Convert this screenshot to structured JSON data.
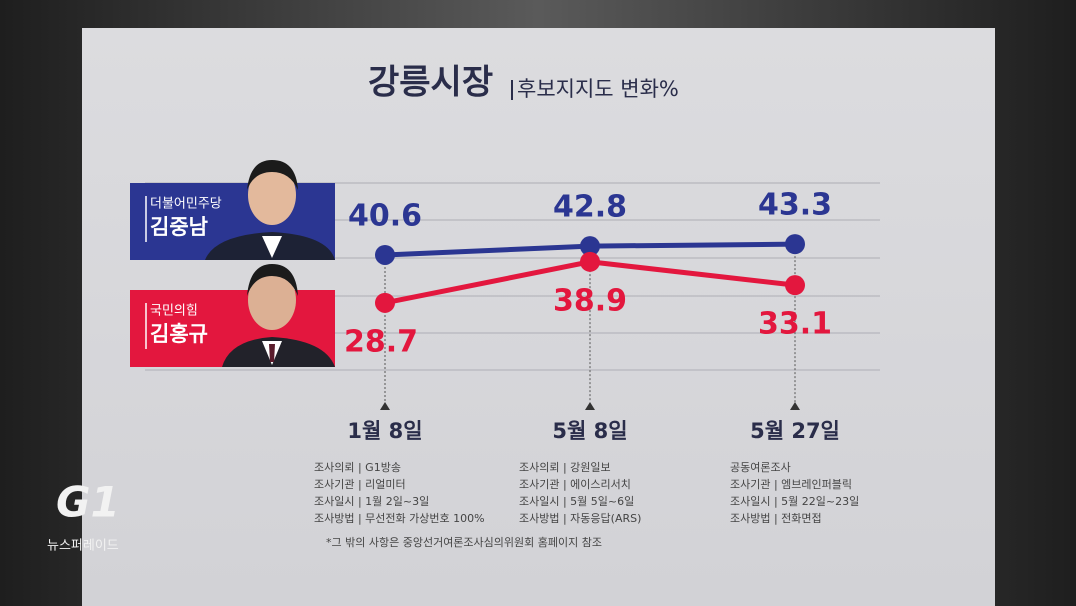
{
  "chart_data": {
    "type": "line",
    "title": "강릉시장",
    "subtitle": "후보지지도 변화%",
    "categories": [
      "1월 8일",
      "5월 8일",
      "5월 27일"
    ],
    "series": [
      {
        "name": "김중남",
        "party": "더불어민주당",
        "color": "#2b3692",
        "values": [
          40.6,
          42.8,
          43.3
        ]
      },
      {
        "name": "김홍규",
        "party": "국민의힘",
        "color": "#e3173e",
        "values": [
          28.7,
          38.9,
          33.1
        ]
      }
    ],
    "ylim": [
      12,
      58.5
    ],
    "survey_info": [
      [
        "조사의뢰 | G1방송",
        "조사기관 | 리얼미터",
        "조사일시 | 1월 2일~3일",
        "조사방법 | 무선전화 가상번호 100%"
      ],
      [
        "조사의뢰 | 강원일보",
        "조사기관 | 에이스리서치",
        "조사일시 | 5월 5일~6일",
        "조사방법 | 자동응답(ARS)"
      ],
      [
        "공동여론조사",
        "조사기관 | 엠브레인퍼블릭",
        "조사일시 | 5월 22일~23일",
        "조사방법 | 전화면접"
      ]
    ],
    "footnote": "*그 밖의 사항은 중앙선거여론조사심의위원회 홈페이지 참조",
    "logo": "G1",
    "program": "뉴스퍼레이드"
  }
}
